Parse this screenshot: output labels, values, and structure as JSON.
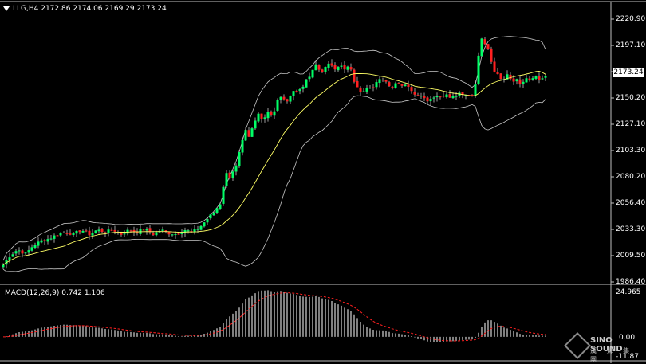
{
  "header": {
    "symbol": "LLG,H4",
    "ohlc": "2172.86 2174.06 2169.29 2173.24"
  },
  "price_axis": {
    "ticks": [
      "2220.90",
      "2197.10",
      "2173.24",
      "2150.20",
      "2127.10",
      "2103.30",
      "2080.20",
      "2056.40",
      "2033.30",
      "2009.50",
      "1986.40"
    ],
    "current_price": "2173.24"
  },
  "macd": {
    "title": "MACD(12,26,9) 0.742 1.106",
    "axis_top": "24.965",
    "axis_zero": "0.00",
    "axis_bottom": "-11.87"
  },
  "watermark": {
    "name": "SINO SOUND",
    "chinese": "漢 聲 集 團"
  },
  "colors": {
    "background": "#000000",
    "bull": "#00ff66",
    "bear": "#ff2020",
    "ma": "#ffff66",
    "bands": "#c8c8c8",
    "signal": "#ff2020",
    "histogram": "#ffffff"
  },
  "chart_data": {
    "type": "candlestick",
    "price_ylim": [
      1986.4,
      2228
    ],
    "path": [
      [
        0,
        1998
      ],
      [
        12,
        2010
      ],
      [
        22,
        2016
      ],
      [
        32,
        2012
      ],
      [
        42,
        2020
      ],
      [
        52,
        2024
      ],
      [
        62,
        2026
      ],
      [
        72,
        2030
      ],
      [
        82,
        2032
      ],
      [
        92,
        2030
      ],
      [
        102,
        2034
      ],
      [
        112,
        2030
      ],
      [
        122,
        2034
      ],
      [
        132,
        2032
      ],
      [
        142,
        2034
      ],
      [
        152,
        2030
      ],
      [
        162,
        2034
      ],
      [
        172,
        2032
      ],
      [
        182,
        2035
      ],
      [
        192,
        2030
      ],
      [
        202,
        2034
      ],
      [
        212,
        2031
      ],
      [
        222,
        2030
      ],
      [
        232,
        2034
      ],
      [
        240,
        2032
      ],
      [
        250,
        2036
      ],
      [
        260,
        2044
      ],
      [
        268,
        2050
      ],
      [
        276,
        2058
      ],
      [
        283,
        2086
      ],
      [
        288,
        2082
      ],
      [
        292,
        2088
      ],
      [
        296,
        2092
      ],
      [
        302,
        2110
      ],
      [
        308,
        2124
      ],
      [
        312,
        2118
      ],
      [
        318,
        2130
      ],
      [
        324,
        2140
      ],
      [
        330,
        2135
      ],
      [
        336,
        2142
      ],
      [
        342,
        2138
      ],
      [
        348,
        2152
      ],
      [
        354,
        2156
      ],
      [
        360,
        2150
      ],
      [
        366,
        2162
      ],
      [
        372,
        2160
      ],
      [
        378,
        2164
      ],
      [
        384,
        2170
      ],
      [
        390,
        2176
      ],
      [
        396,
        2185
      ],
      [
        402,
        2178
      ],
      [
        408,
        2182
      ],
      [
        414,
        2186
      ],
      [
        420,
        2182
      ],
      [
        426,
        2185
      ],
      [
        432,
        2180
      ],
      [
        438,
        2184
      ],
      [
        444,
        2170
      ],
      [
        450,
        2160
      ],
      [
        456,
        2162
      ],
      [
        462,
        2166
      ],
      [
        468,
        2164
      ],
      [
        474,
        2170
      ],
      [
        480,
        2172
      ],
      [
        486,
        2168
      ],
      [
        492,
        2164
      ],
      [
        498,
        2170
      ],
      [
        504,
        2166
      ],
      [
        510,
        2168
      ],
      [
        516,
        2160
      ],
      [
        522,
        2158
      ],
      [
        528,
        2158
      ],
      [
        534,
        2152
      ],
      [
        540,
        2154
      ],
      [
        546,
        2157
      ],
      [
        552,
        2156
      ],
      [
        558,
        2158
      ],
      [
        564,
        2155
      ],
      [
        570,
        2156
      ],
      [
        576,
        2158
      ],
      [
        582,
        2156
      ],
      [
        588,
        2158
      ],
      [
        594,
        2157
      ],
      [
        600,
        2192
      ],
      [
        604,
        2210
      ],
      [
        608,
        2205
      ],
      [
        612,
        2200
      ],
      [
        618,
        2182
      ],
      [
        624,
        2176
      ],
      [
        630,
        2170
      ],
      [
        636,
        2176
      ],
      [
        642,
        2168
      ],
      [
        648,
        2172
      ],
      [
        654,
        2166
      ],
      [
        660,
        2172
      ],
      [
        666,
        2170
      ],
      [
        672,
        2174
      ],
      [
        678,
        2170
      ],
      [
        684,
        2173
      ]
    ],
    "macd_ylim": [
      -11.87,
      24.965
    ]
  }
}
